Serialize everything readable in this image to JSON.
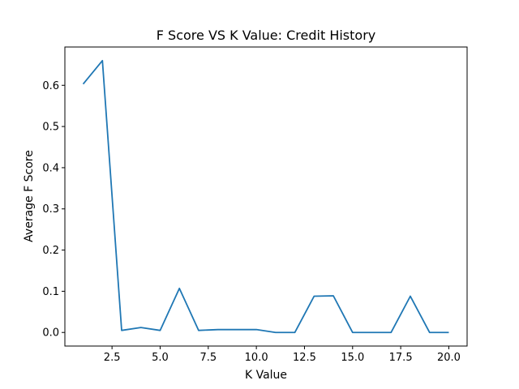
{
  "chart_data": {
    "type": "line",
    "title": "F Score VS K Value: Credit History",
    "xlabel": "K Value",
    "ylabel": "Average F Score",
    "xlim": [
      0.05,
      20.95
    ],
    "ylim": [
      -0.033,
      0.693
    ],
    "x_ticks": [
      2.5,
      5.0,
      7.5,
      10.0,
      12.5,
      15.0,
      17.5,
      20.0
    ],
    "x_tick_labels": [
      "2.5",
      "5.0",
      "7.5",
      "10.0",
      "12.5",
      "15.0",
      "17.5",
      "20.0"
    ],
    "y_ticks": [
      0.0,
      0.1,
      0.2,
      0.3,
      0.4,
      0.5,
      0.6
    ],
    "y_tick_labels": [
      "0.0",
      "0.1",
      "0.2",
      "0.3",
      "0.4",
      "0.5",
      "0.6"
    ],
    "grid": false,
    "color": "#1f77b4",
    "series": [
      {
        "x": [
          1,
          2,
          3,
          4,
          5,
          6,
          7,
          8,
          9,
          10,
          11,
          12,
          13,
          14,
          15,
          16,
          17,
          18,
          19,
          20
        ],
        "values": [
          0.603,
          0.66,
          0.005,
          0.012,
          0.005,
          0.107,
          0.005,
          0.007,
          0.007,
          0.007,
          0.0,
          0.0,
          0.088,
          0.089,
          0.0,
          0.0,
          0.0,
          0.088,
          0.0,
          0.0
        ]
      }
    ]
  }
}
